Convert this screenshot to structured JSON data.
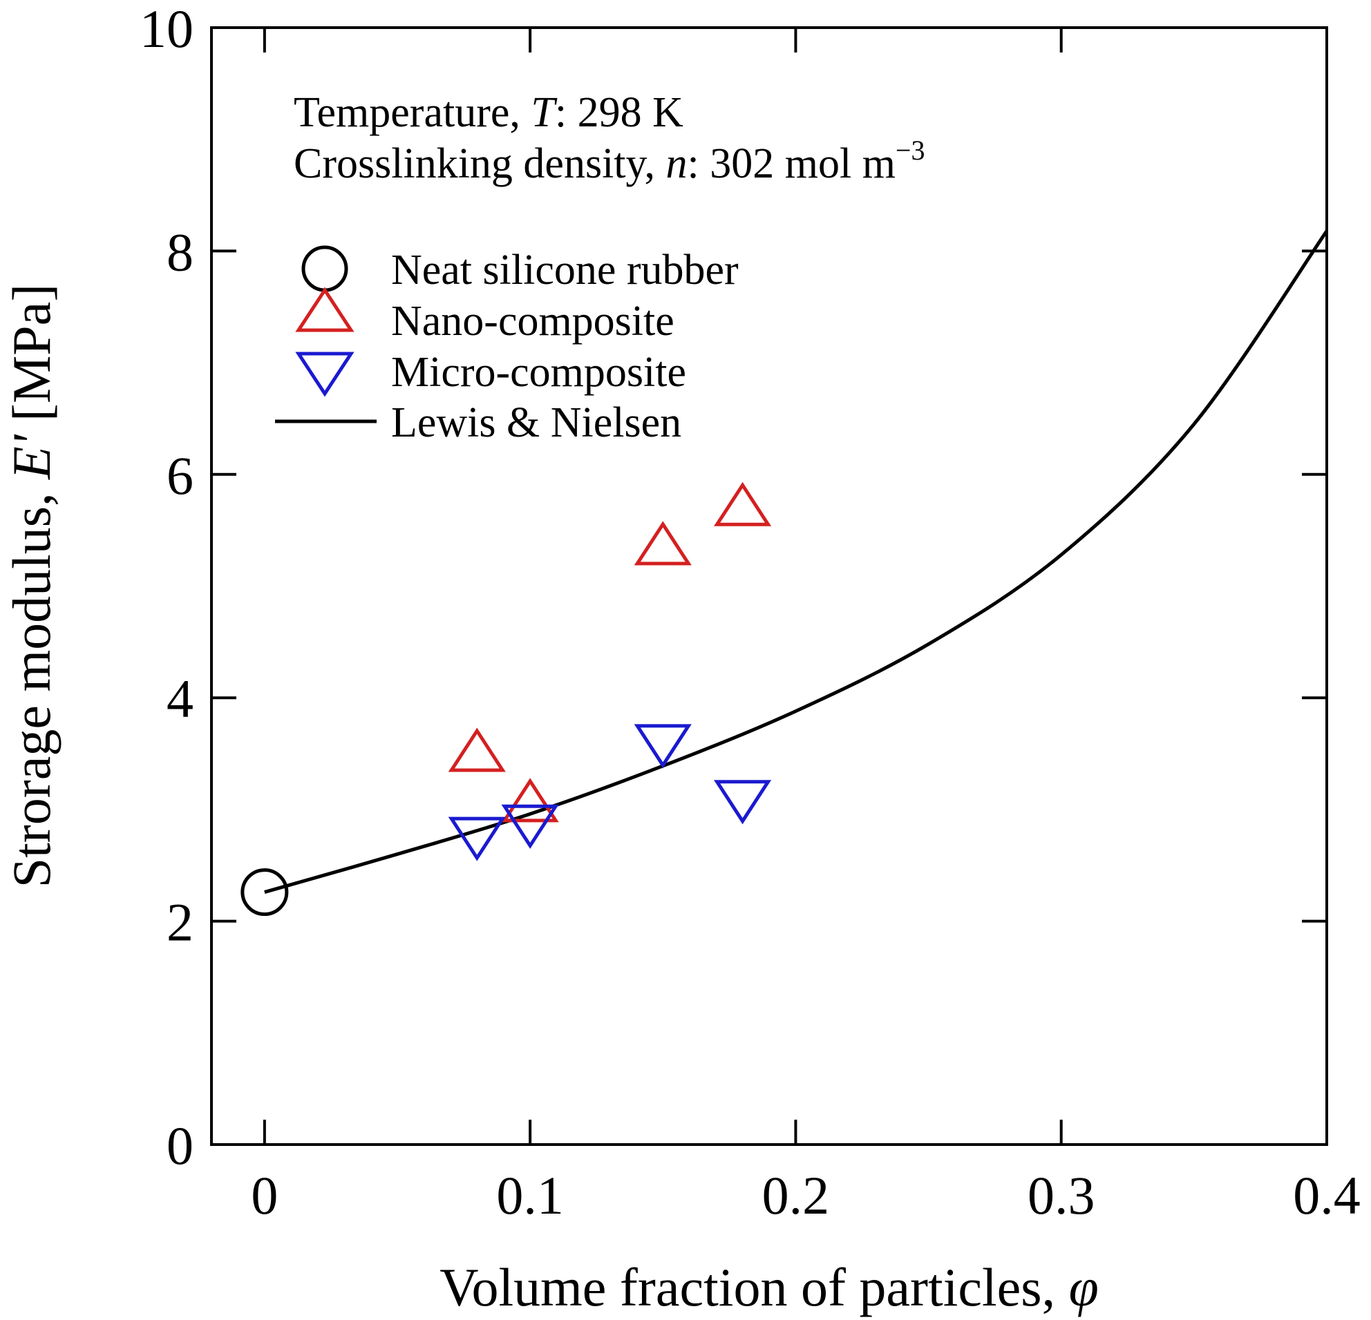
{
  "chart_data": {
    "type": "scatter",
    "xlabel": "Volume fraction of particles, ",
    "xlabel_symbol": "φ",
    "ylabel": "Strorage modulus, ",
    "ylabel_symbol": "E'",
    "ylabel_unit": " [MPa]",
    "xlim": [
      -0.02,
      0.4
    ],
    "ylim": [
      0,
      10
    ],
    "x_ticks": [
      0,
      0.1,
      0.2,
      0.3,
      0.4
    ],
    "x_tick_labels": [
      "0",
      "0.1",
      "0.2",
      "0.3",
      "0.4"
    ],
    "y_ticks": [
      0,
      2,
      4,
      6,
      8,
      10
    ],
    "y_tick_labels": [
      "0",
      "2",
      "4",
      "6",
      "8",
      "10"
    ],
    "grid": false,
    "legend_position": "upper-left",
    "annotations": {
      "temperature_prefix": "Temperature, ",
      "temperature_symbol": "T",
      "temperature_value": ": 298 K",
      "crosslink_prefix": "Crosslinking density, ",
      "crosslink_symbol": "n",
      "crosslink_value": ": 302 mol m",
      "crosslink_exponent": "−3"
    },
    "series": [
      {
        "name": "Neat silicone rubber",
        "marker": "circle",
        "color": "#000000",
        "x": [
          0
        ],
        "y": [
          2.26
        ]
      },
      {
        "name": "Nano-composite",
        "marker": "triangle-up",
        "color": "#d42020",
        "x": [
          0.08,
          0.1,
          0.15,
          0.18
        ],
        "y": [
          3.5,
          3.05,
          5.35,
          5.7
        ]
      },
      {
        "name": "Micro-composite",
        "marker": "triangle-down",
        "color": "#1a1ad0",
        "x": [
          0.08,
          0.1,
          0.15,
          0.18
        ],
        "y": [
          2.77,
          2.88,
          3.6,
          3.1
        ]
      },
      {
        "name": "Lewis & Nielsen",
        "type": "line",
        "color": "#000000",
        "x": [
          0,
          0.05,
          0.1,
          0.15,
          0.2,
          0.25,
          0.3,
          0.35,
          0.4
        ],
        "y": [
          2.26,
          2.6,
          2.96,
          3.39,
          3.88,
          4.48,
          5.28,
          6.45,
          8.18
        ]
      }
    ]
  }
}
